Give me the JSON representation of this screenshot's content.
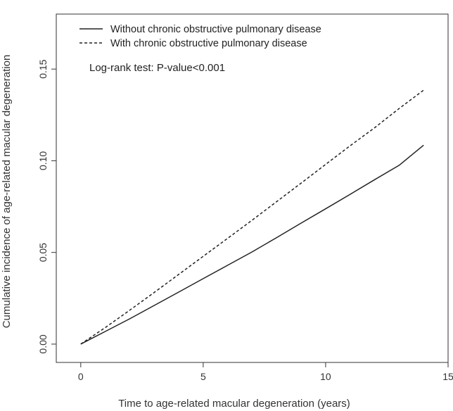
{
  "chart_data": {
    "type": "line",
    "title": "",
    "xlabel": "Time to age-related macular degeneration (years)",
    "ylabel": "Cumulative incidence of age-related macular degeneration",
    "xlim": [
      -1,
      15
    ],
    "ylim": [
      -0.01,
      0.18
    ],
    "xticks": [
      0,
      5,
      10,
      15
    ],
    "yticks": [
      0.0,
      0.05,
      0.1,
      0.15
    ],
    "xtick_labels": [
      "0",
      "5",
      "10",
      "15"
    ],
    "ytick_labels": [
      "0.00",
      "0.05",
      "0.10",
      "0.15"
    ],
    "grid": false,
    "legend_position": "top-left",
    "legend": [
      {
        "label": "Without chronic obstructive pulmonary disease",
        "style": "solid"
      },
      {
        "label": "With chronic obstructive pulmonary disease",
        "style": "dashed"
      }
    ],
    "annotation": "Log-rank test: P-value<0.001",
    "series": [
      {
        "style": "solid",
        "x": [
          0,
          1,
          2,
          3,
          4,
          5,
          6,
          7,
          8,
          9,
          10,
          11,
          12,
          13,
          14
        ],
        "y": [
          0,
          0.0069,
          0.0138,
          0.0211,
          0.0284,
          0.0357,
          0.043,
          0.0503,
          0.0581,
          0.066,
          0.0738,
          0.0817,
          0.0897,
          0.0975,
          0.1085
        ]
      },
      {
        "style": "dashed",
        "x": [
          0,
          1,
          2,
          3,
          4,
          5,
          6,
          7,
          8,
          9,
          10,
          11,
          12,
          13,
          14
        ],
        "y": [
          0,
          0.009,
          0.0185,
          0.0282,
          0.038,
          0.0479,
          0.0577,
          0.0676,
          0.0777,
          0.0878,
          0.098,
          0.1082,
          0.118,
          0.1285,
          0.1385
        ]
      }
    ],
    "colors": {
      "line": "#222222",
      "axis": "#333333"
    }
  }
}
